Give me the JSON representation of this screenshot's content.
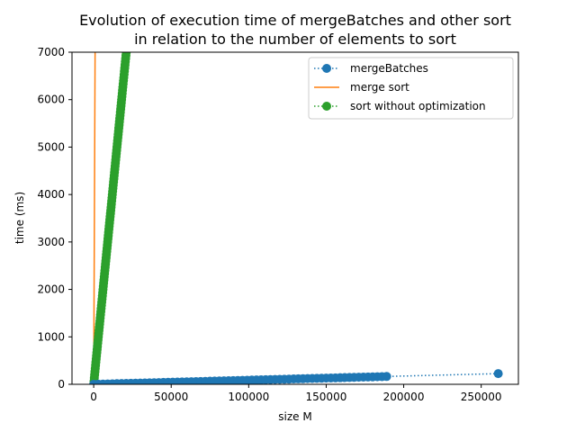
{
  "chart_data": {
    "type": "line",
    "title_line1": "Evolution of execution time of mergeBatches and other sort",
    "title_line2": "in relation to the number of elements to sort",
    "xlabel": "size M",
    "ylabel": "time (ms)",
    "xlim": [
      -14000,
      274000
    ],
    "ylim": [
      0,
      7000
    ],
    "xticks": [
      0,
      50000,
      100000,
      150000,
      200000,
      250000
    ],
    "yticks": [
      0,
      1000,
      2000,
      3000,
      4000,
      5000,
      6000,
      7000
    ],
    "legend_position": "upper-right",
    "series": [
      {
        "name": "mergeBatches",
        "color": "#1f77b4",
        "linestyle": "dotted",
        "marker": "circle",
        "dense_points": {
          "x_start": 0,
          "x_end": 189000,
          "y_start": 0,
          "y_end": 165,
          "step": 3000
        },
        "extra_points": [
          {
            "x": 261000,
            "y": 225
          }
        ]
      },
      {
        "name": "merge sort",
        "color": "#ff7f0e",
        "linestyle": "solid",
        "marker": "none",
        "points": [
          {
            "x": 0,
            "y": 0
          },
          {
            "x": 900,
            "y": 7000
          }
        ]
      },
      {
        "name": "sort without optimization",
        "color": "#2ca02c",
        "linestyle": "dotted",
        "marker": "circle",
        "dense_points": {
          "x_start": 0,
          "x_end": 21000,
          "y_start": 0,
          "y_end": 7000,
          "step": 200
        }
      }
    ]
  }
}
